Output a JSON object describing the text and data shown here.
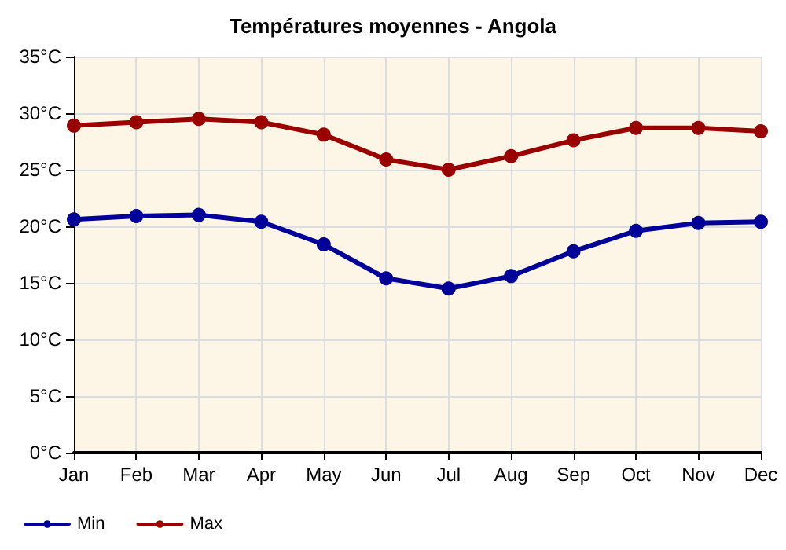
{
  "chart_data": {
    "type": "line",
    "title": "Températures moyennes - Angola",
    "categories": [
      "Jan",
      "Feb",
      "Mar",
      "Apr",
      "May",
      "Jun",
      "Jul",
      "Aug",
      "Sep",
      "Oct",
      "Nov",
      "Dec"
    ],
    "series": [
      {
        "name": "Min",
        "color": "#000099",
        "values": [
          20.6,
          20.9,
          21.0,
          20.4,
          18.4,
          15.4,
          14.5,
          15.6,
          17.8,
          19.6,
          20.3,
          20.4
        ]
      },
      {
        "name": "Max",
        "color": "#990000",
        "values": [
          28.9,
          29.2,
          29.5,
          29.2,
          28.1,
          25.9,
          25.0,
          26.2,
          27.6,
          28.7,
          28.7,
          28.4
        ]
      }
    ],
    "ylim": [
      0,
      35
    ],
    "yticks": [
      {
        "value": 0,
        "label": "0°C"
      },
      {
        "value": 5,
        "label": "5°C"
      },
      {
        "value": 10,
        "label": "10°C"
      },
      {
        "value": 15,
        "label": "15°C"
      },
      {
        "value": 20,
        "label": "20°C"
      },
      {
        "value": 25,
        "label": "25°C"
      },
      {
        "value": 30,
        "label": "30°C"
      },
      {
        "value": 35,
        "label": "35°C"
      }
    ],
    "grid": true,
    "legend": "bottom left",
    "marker": "circle",
    "line_style": "solid"
  }
}
